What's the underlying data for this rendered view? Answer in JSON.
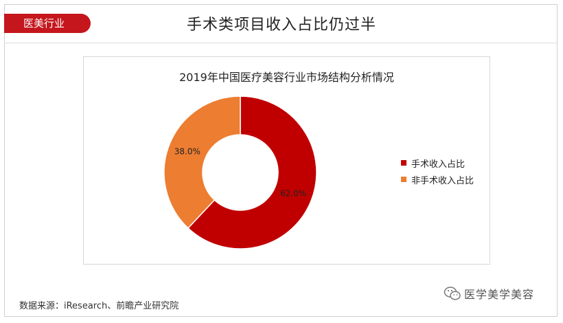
{
  "header": {
    "tag_label": "医美行业",
    "title": "手术类项目收入占比仍过半"
  },
  "chart_data": {
    "type": "pie",
    "title": "2019年中国医疗美容行业市场结构分析情况",
    "categories": [
      "手术收入占比",
      "非手术收入占比"
    ],
    "values": [
      62.0,
      38.0
    ],
    "data_labels": [
      "62.0%",
      "38.0%"
    ],
    "colors": [
      "#c00000",
      "#ed7d31"
    ],
    "legend_position": "right",
    "donut": true
  },
  "footer": {
    "source": "数据来源：iResearch、前瞻产业研究院",
    "watermark": "医学美学美容",
    "watermark_icon": "wechat-icon"
  }
}
